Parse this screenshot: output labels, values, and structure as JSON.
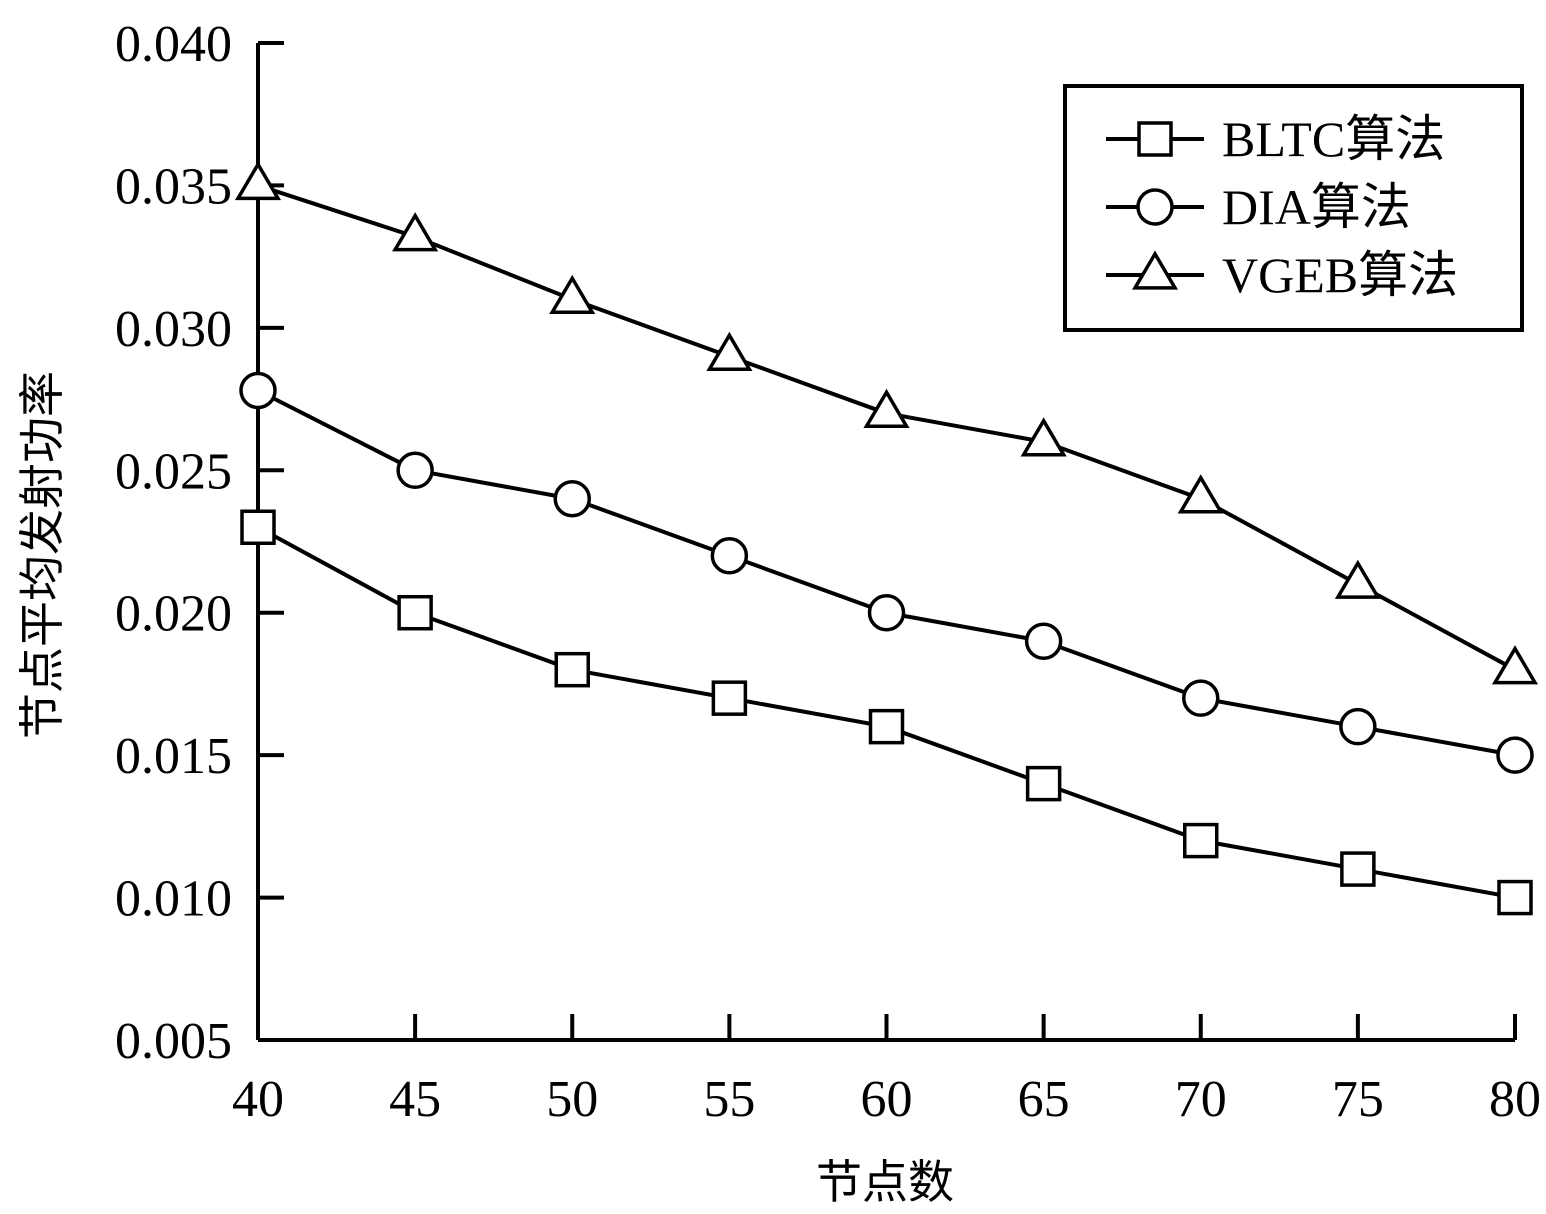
{
  "chart_data": {
    "type": "line",
    "xlabel": "节点数",
    "ylabel": "节点平均发射功率",
    "x": [
      40,
      45,
      50,
      55,
      60,
      65,
      70,
      75,
      80
    ],
    "xlim": [
      40,
      80
    ],
    "ylim": [
      0.005,
      0.04
    ],
    "x_ticks": [
      "40",
      "45",
      "50",
      "55",
      "60",
      "65",
      "70",
      "75",
      "80"
    ],
    "y_ticks": [
      "0.005",
      "0.010",
      "0.015",
      "0.020",
      "0.025",
      "0.030",
      "0.035",
      "0.040"
    ],
    "grid": false,
    "legend_position": "top-right",
    "series": [
      {
        "name": "BLTC算法",
        "marker": "square",
        "values": [
          0.023,
          0.02,
          0.018,
          0.017,
          0.016,
          0.014,
          0.012,
          0.011,
          0.01
        ]
      },
      {
        "name": "DIA算法",
        "marker": "circle",
        "values": [
          0.0278,
          0.025,
          0.024,
          0.022,
          0.02,
          0.019,
          0.017,
          0.016,
          0.015
        ]
      },
      {
        "name": "VGEB算法",
        "marker": "triangle",
        "values": [
          0.035,
          0.0332,
          0.031,
          0.029,
          0.027,
          0.026,
          0.024,
          0.021,
          0.018
        ]
      }
    ],
    "line_color": "#000000"
  }
}
